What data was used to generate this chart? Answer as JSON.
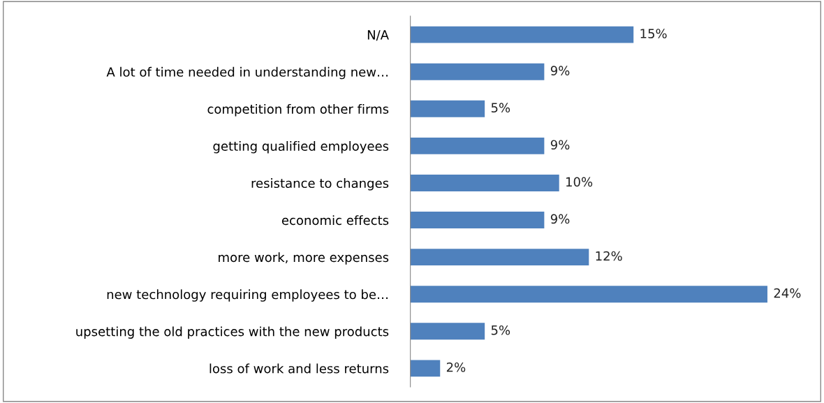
{
  "chart_data": {
    "type": "bar",
    "orientation": "horizontal",
    "categories": [
      "N/A",
      "A lot of time needed in understanding new…",
      "competition from other firms",
      "getting qualified employees",
      "resistance to changes",
      "economic effects",
      "more work, more expenses",
      "new technology requiring employees to be…",
      "upsetting the old practices with the new products",
      "loss of work and less returns"
    ],
    "values": [
      15,
      9,
      5,
      9,
      10,
      9,
      12,
      24,
      5,
      2
    ],
    "value_labels": [
      "15%",
      "9%",
      "5%",
      "9%",
      "10%",
      "9%",
      "12%",
      "24%",
      "5%",
      "2%"
    ],
    "color": "#4f81bd"
  }
}
